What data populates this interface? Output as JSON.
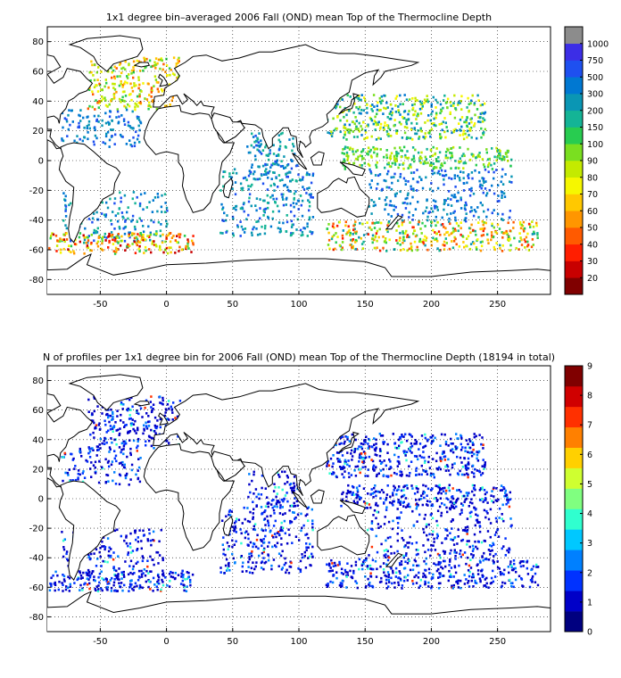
{
  "panels": [
    {
      "title": "1x1 degree bin–averaged 2006 Fall (OND) mean Top of the Thermocline Depth",
      "x_ticks": [
        "-50",
        "0",
        "50",
        "100",
        "150",
        "200",
        "250"
      ],
      "y_ticks": [
        "80",
        "60",
        "40",
        "20",
        "0",
        "-20",
        "-40",
        "-60",
        "-80"
      ],
      "colorbar": {
        "labels": [
          "1000",
          "750",
          "500",
          "300",
          "200",
          "150",
          "100",
          "90",
          "80",
          "70",
          "60",
          "50",
          "40",
          "30",
          "20"
        ],
        "colors": [
          "#800000",
          "#c80000",
          "#ff1e00",
          "#ff5a00",
          "#ff9600",
          "#ffc800",
          "#f6f700",
          "#c4ea00",
          "#7adf20",
          "#28cc50",
          "#14b496",
          "#0a96b4",
          "#0078d2",
          "#1e50f0",
          "#3c2ee6",
          "#8c8c8c"
        ]
      }
    },
    {
      "title": "N of profiles per 1x1 degree bin for 2006 Fall (OND) mean Top of the Thermocline Depth  (18194 in total)",
      "x_ticks": [
        "-50",
        "0",
        "50",
        "100",
        "150",
        "200",
        "250"
      ],
      "y_ticks": [
        "80",
        "60",
        "40",
        "20",
        "0",
        "-20",
        "-40",
        "-60",
        "-80"
      ],
      "colorbar": {
        "labels": [
          "9",
          "8",
          "7",
          "6",
          "5",
          "4",
          "3",
          "2",
          "1",
          "0"
        ],
        "colors": [
          "#000080",
          "#0000c8",
          "#0032ff",
          "#0080ff",
          "#00c8ff",
          "#30ffcf",
          "#80ff80",
          "#cfff30",
          "#ffd000",
          "#ff8000",
          "#ff3000",
          "#d00000",
          "#800000"
        ]
      }
    }
  ],
  "map": {
    "lon_range": [
      -90,
      290
    ],
    "lat_range": [
      -90,
      90
    ],
    "grid": "dotted",
    "coastline_color": "#000000",
    "ocean_color": "#ffffff"
  }
}
